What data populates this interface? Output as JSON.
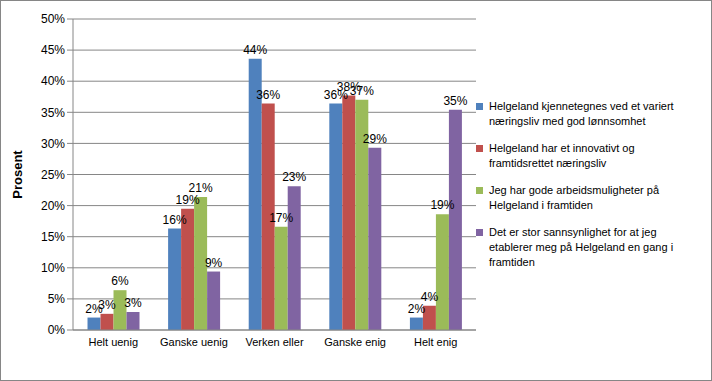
{
  "chart_data": {
    "type": "bar",
    "y_label": "Prosent",
    "categories": [
      "Helt uenig",
      "Ganske uenig",
      "Verken eller",
      "Ganske enig",
      "Helt enig"
    ],
    "series": [
      {
        "name": "Helgeland kjennetegnes ved et variert næringsliv med god lønnsomhet",
        "color": "#4f81bd",
        "values": [
          2,
          16.3,
          43.6,
          36.4,
          2
        ],
        "value_labels": [
          "2%",
          "16%",
          "44%",
          "36%",
          "2%"
        ]
      },
      {
        "name": "Helgeland har et innovativt og framtidsrettet næringsliv",
        "color": "#c0504d",
        "values": [
          2.6,
          19.5,
          36.4,
          37.7,
          3.9
        ],
        "value_labels": [
          "3%",
          "19%",
          "36%",
          "38%",
          "4%"
        ]
      },
      {
        "name": "Jeg har gode arbeidsmuligheter på Helgeland i framtiden",
        "color": "#9bbb59",
        "values": [
          6.4,
          21.4,
          16.6,
          37,
          18.6
        ],
        "value_labels": [
          "6%",
          "21%",
          "17%",
          "37%",
          "19%"
        ]
      },
      {
        "name": "Det er stor sannsynlighet for at jeg etablerer meg på Helgeland en gang i framtiden",
        "color": "#8064a2",
        "values": [
          2.9,
          9.4,
          23.1,
          29.3,
          35.4
        ],
        "value_labels": [
          "3%",
          "9%",
          "23%",
          "29%",
          "35%"
        ]
      }
    ],
    "ylim": [
      0,
      50
    ],
    "yticks": [
      {
        "value": 0,
        "label": "0%"
      },
      {
        "value": 5,
        "label": "5%"
      },
      {
        "value": 10,
        "label": "10%"
      },
      {
        "value": 15,
        "label": "15%"
      },
      {
        "value": 20,
        "label": "20%"
      },
      {
        "value": 25,
        "label": "25%"
      },
      {
        "value": 30,
        "label": "30%"
      },
      {
        "value": 35,
        "label": "35%"
      },
      {
        "value": 40,
        "label": "40%"
      },
      {
        "value": 45,
        "label": "45%"
      },
      {
        "value": 50,
        "label": "50%"
      }
    ],
    "grid": true,
    "legend": "right",
    "data_labels": true
  }
}
